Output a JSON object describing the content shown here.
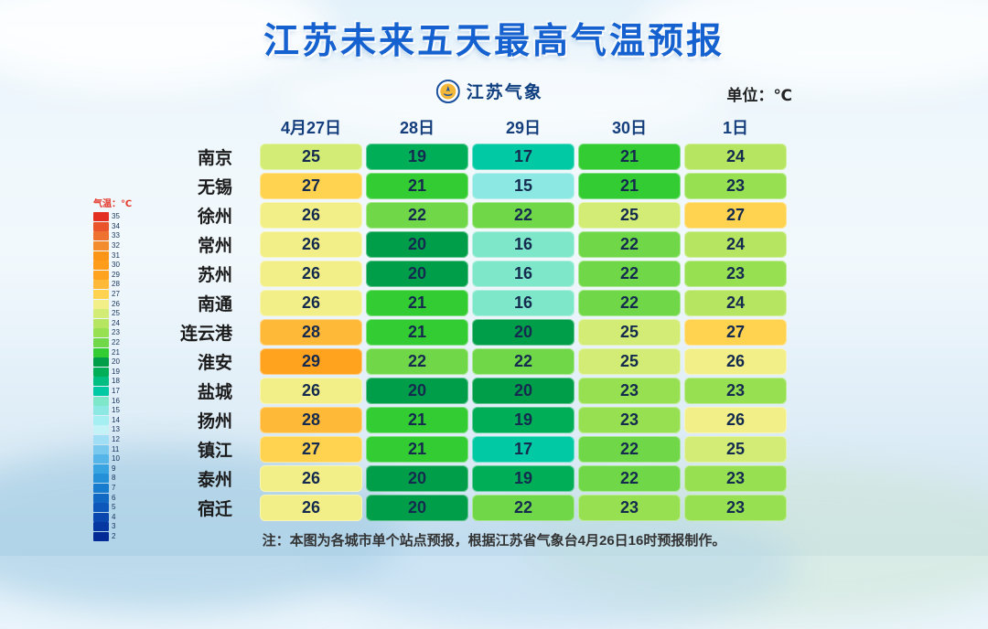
{
  "title": "江苏未来五天最高气温预报",
  "header": {
    "logo_text": "江苏气象",
    "unit_label": "单位：℃"
  },
  "note": "注：本图为各城市单个站点预报，根据江苏省气象台4月26日16时预报制作。",
  "legend": {
    "title": "气温：℃",
    "items": [
      {
        "t": 35,
        "c": "#e32f22"
      },
      {
        "t": 34,
        "c": "#e9542a"
      },
      {
        "t": 33,
        "c": "#ef7130"
      },
      {
        "t": 32,
        "c": "#f28c2f"
      },
      {
        "t": 31,
        "c": "#fb9518"
      },
      {
        "t": 30,
        "c": "#ff9d1b"
      },
      {
        "t": 29,
        "c": "#ffa31f"
      },
      {
        "t": 28,
        "c": "#ffb938"
      },
      {
        "t": 27,
        "c": "#ffd24f"
      },
      {
        "t": 26,
        "c": "#f2ef88"
      },
      {
        "t": 25,
        "c": "#d3ec76"
      },
      {
        "t": 24,
        "c": "#b5e561"
      },
      {
        "t": 23,
        "c": "#97e052"
      },
      {
        "t": 22,
        "c": "#70d848"
      },
      {
        "t": 21,
        "c": "#33cc33"
      },
      {
        "t": 20,
        "c": "#009e49"
      },
      {
        "t": 19,
        "c": "#00ae57"
      },
      {
        "t": 18,
        "c": "#00bd81"
      },
      {
        "t": 17,
        "c": "#00c9a3"
      },
      {
        "t": 16,
        "c": "#7fe7c9"
      },
      {
        "t": 15,
        "c": "#8ce8e2"
      },
      {
        "t": 14,
        "c": "#a5eef2"
      },
      {
        "t": 13,
        "c": "#c3f3f7"
      },
      {
        "t": 12,
        "c": "#9fdef4"
      },
      {
        "t": 11,
        "c": "#79c9ee"
      },
      {
        "t": 10,
        "c": "#55b5e8"
      },
      {
        "t": 9,
        "c": "#38a3e1"
      },
      {
        "t": 8,
        "c": "#2490d8"
      },
      {
        "t": 7,
        "c": "#187cce"
      },
      {
        "t": 6,
        "c": "#1169c4"
      },
      {
        "t": 5,
        "c": "#0d57ba"
      },
      {
        "t": 4,
        "c": "#0946ae"
      },
      {
        "t": 3,
        "c": "#0636a2"
      },
      {
        "t": 2,
        "c": "#042a96"
      }
    ]
  },
  "chart_data": {
    "type": "heatmap",
    "title": "江苏未来五天最高气温预报",
    "unit": "℃",
    "columns": [
      "4月27日",
      "28日",
      "29日",
      "30日",
      "1日"
    ],
    "rows": [
      {
        "city": "南京",
        "values": [
          25,
          19,
          17,
          21,
          24
        ]
      },
      {
        "city": "无锡",
        "values": [
          27,
          21,
          15,
          21,
          23
        ]
      },
      {
        "city": "徐州",
        "values": [
          26,
          22,
          22,
          25,
          27
        ]
      },
      {
        "city": "常州",
        "values": [
          26,
          20,
          16,
          22,
          24
        ]
      },
      {
        "city": "苏州",
        "values": [
          26,
          20,
          16,
          22,
          23
        ]
      },
      {
        "city": "南通",
        "values": [
          26,
          21,
          16,
          22,
          24
        ]
      },
      {
        "city": "连云港",
        "values": [
          28,
          21,
          20,
          25,
          27
        ]
      },
      {
        "city": "淮安",
        "values": [
          29,
          22,
          22,
          25,
          26
        ]
      },
      {
        "city": "盐城",
        "values": [
          26,
          20,
          20,
          23,
          23
        ]
      },
      {
        "city": "扬州",
        "values": [
          28,
          21,
          19,
          23,
          26
        ]
      },
      {
        "city": "镇江",
        "values": [
          27,
          21,
          17,
          22,
          25
        ]
      },
      {
        "city": "泰州",
        "values": [
          26,
          20,
          19,
          22,
          23
        ]
      },
      {
        "city": "宿迁",
        "values": [
          26,
          20,
          22,
          23,
          23
        ]
      }
    ],
    "color_scale_range": [
      2,
      35
    ],
    "legend_position": "left"
  }
}
